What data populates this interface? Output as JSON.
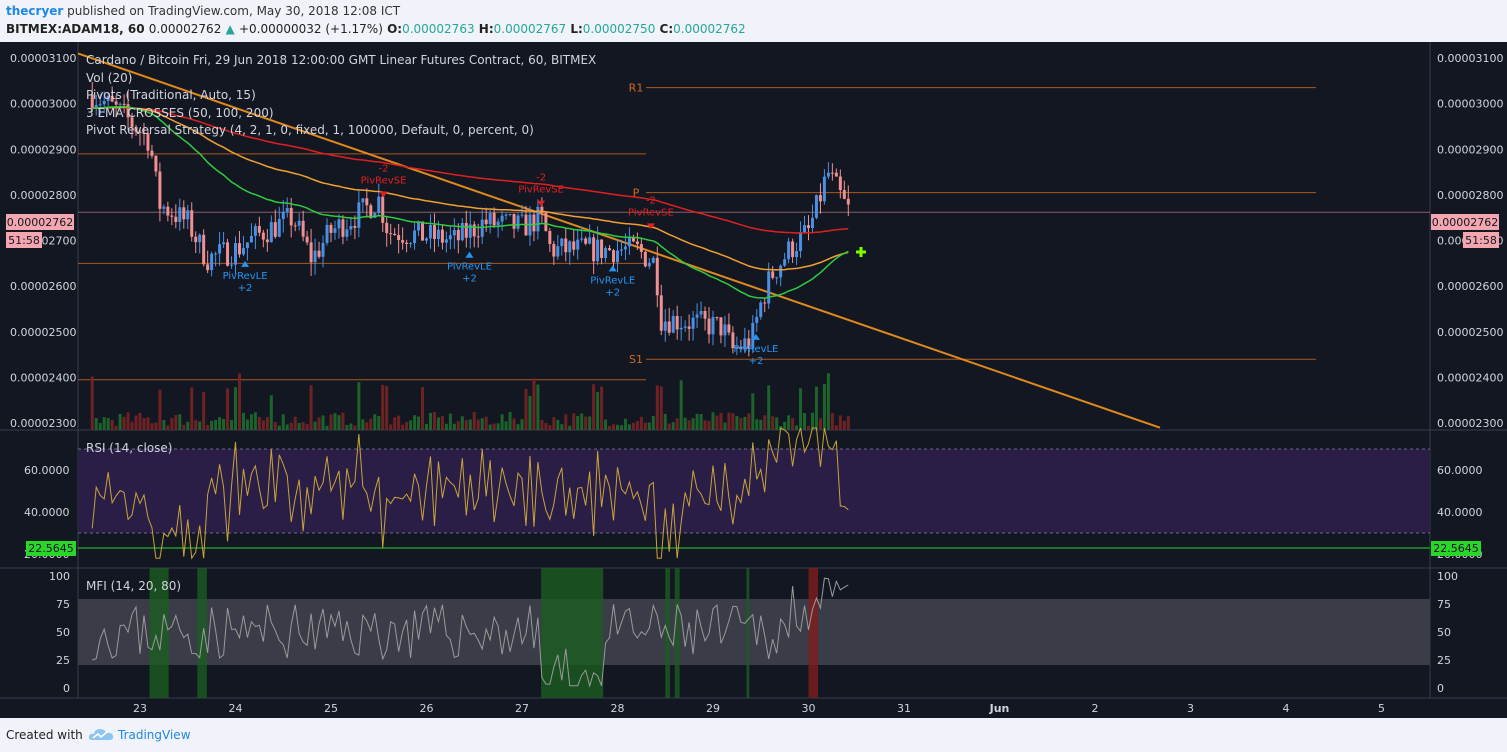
{
  "header": {
    "user": "thecryer",
    "published": "published on TradingView.com, May 30, 2018 12:08 ICT",
    "symbol": "BITMEX:ADAM18, 60",
    "last": "0.00002762",
    "change": "+0.00000032 (+1.17%)",
    "o_label": "O:",
    "o": "0.00002763",
    "h_label": "H:",
    "h": "0.00002767",
    "l_label": "L:",
    "l": "0.00002750",
    "c_label": "C:",
    "c": "0.00002762"
  },
  "legend": {
    "title": "Cardano / Bitcoin Fri, 29 Jun 2018 12:00:00 GMT Linear Futures Contract, 60, BITMEX",
    "vol": "Vol (20)",
    "pivots": "Pivots (Traditional, Auto, 15)",
    "ema": "3 EMA CROSSES (50, 100, 200)",
    "strategy": "Pivot Reversal Strategy (4, 2, 1, 0, fixed, 1, 100000, Default, 0, percent, 0)"
  },
  "price_badge": "0.00002762",
  "time_badge": "51:58",
  "rsi": {
    "label": "RSI (14, close)",
    "badge": "22.5645",
    "ticks": [
      "60.0000",
      "40.0000",
      "20.0000"
    ]
  },
  "mfi": {
    "label": "MFI (14, 20, 80)",
    "ticks": [
      "100",
      "75",
      "50",
      "25",
      "0"
    ]
  },
  "footer": {
    "created": "Created with",
    "brand": "TradingView"
  },
  "colors": {
    "bg": "#131722",
    "up": "#4a90e2",
    "down": "#f09090",
    "ema50": "#2ecc40",
    "ema100": "#f0a030",
    "ema200": "#e02020",
    "trend": "#e08a1e",
    "pivot": "#d2691e",
    "rsi_band": "#2a1e46",
    "rsi_line": "#c8a43c",
    "green_level": "#29d629",
    "price_badge_bg": "#f4a6b0"
  },
  "chart_data": {
    "type": "candlestick",
    "title": "Cardano / Bitcoin Fri, 29 Jun 2018 12:00:00 GMT Linear Futures Contract, 60, BITMEX",
    "price_axis_ticks": [
      "0.00003100",
      "0.00003000",
      "0.00002900",
      "0.00002800",
      "0.00002700",
      "0.00002600",
      "0.00002500",
      "0.00002400",
      "0.00002300"
    ],
    "price_range": [
      2.285e-05,
      3.135e-05
    ],
    "x_ticks": [
      "23",
      "24",
      "25",
      "26",
      "27",
      "28",
      "29",
      "30",
      "31",
      "Jun",
      "2",
      "3",
      "4",
      "5"
    ],
    "pivot_levels": [
      {
        "label": "R1",
        "value": 3.035e-05
      },
      {
        "label": "P",
        "value": 2.805e-05
      },
      {
        "label": "S1",
        "value": 2.44e-05
      }
    ],
    "left_levels": [
      3.15e-05,
      2.89e-05,
      2.65e-05,
      2.395e-05
    ],
    "signals": [
      {
        "type": "short",
        "text": [
          "-2",
          "PivRevSE"
        ],
        "x_day": 25.55,
        "price": 2.79e-05
      },
      {
        "type": "short",
        "text": [
          "-2",
          "PivRevSE"
        ],
        "x_day": 27.2,
        "price": 2.77e-05
      },
      {
        "type": "short",
        "text": [
          "-2",
          "PivRevSE"
        ],
        "x_day": 28.35,
        "price": 2.72e-05
      },
      {
        "type": "long",
        "text": [
          "PivRevLE",
          "+2"
        ],
        "x_day": 24.1,
        "price": 2.66e-05
      },
      {
        "type": "long",
        "text": [
          "PivRevLE",
          "+2"
        ],
        "x_day": 26.45,
        "price": 2.68e-05
      },
      {
        "type": "long",
        "text": [
          "PivRevLE",
          "+2"
        ],
        "x_day": 27.95,
        "price": 2.65e-05
      },
      {
        "type": "long",
        "text": [
          "PivRevLE",
          "+2"
        ],
        "x_day": 29.45,
        "price": 2.5e-05
      }
    ],
    "rsi_overbought": 70,
    "rsi_oversold": 30,
    "rsi_level": 22.5645,
    "mfi_bands": [
      20,
      80
    ]
  }
}
